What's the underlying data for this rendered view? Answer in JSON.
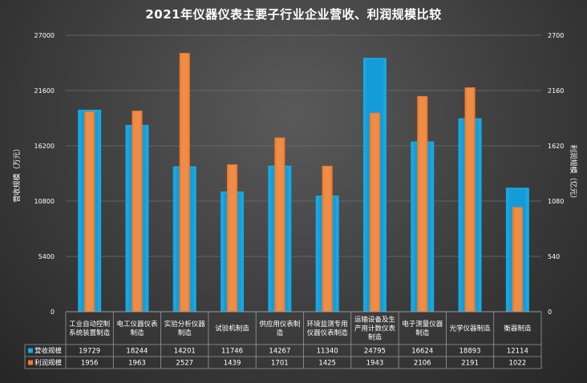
{
  "chart_data": {
    "type": "bar",
    "title": "2021年仪器仪表主要子行业企业营收、利润规模比较",
    "categories": [
      "工业自动控制系统装置制造",
      "电工仪器仪表制造",
      "实验分析仪器制造",
      "试验机制造",
      "供应用仪表制造",
      "环境监测专用仪器仪表制造",
      "运输设备及生产用计数仪表制造",
      "电子测量仪器制造",
      "光学仪器制造",
      "衡器制造"
    ],
    "series": [
      {
        "name": "营收规模",
        "axis": "left",
        "color": "#17a8e3",
        "values": [
          19729,
          18244,
          14201,
          11746,
          14267,
          11340,
          24795,
          16624,
          18893,
          12114
        ]
      },
      {
        "name": "利润规模",
        "axis": "right",
        "color": "#ed7d31",
        "values": [
          1956,
          1963,
          2527,
          1439,
          1701,
          1425,
          1943,
          2106,
          2191,
          1022
        ]
      }
    ],
    "ylabel": "营收规模（万元）",
    "y2label": "利润规模（亿元）",
    "ylim": [
      0,
      27000
    ],
    "y2lim": [
      0,
      2700
    ],
    "yticks": [
      "0",
      "5400",
      "10800",
      "16200",
      "21600",
      "27000"
    ],
    "y2ticks": [
      "0",
      "540",
      "1080",
      "1620",
      "2160",
      "2700"
    ],
    "grid": true,
    "data_table": true
  }
}
